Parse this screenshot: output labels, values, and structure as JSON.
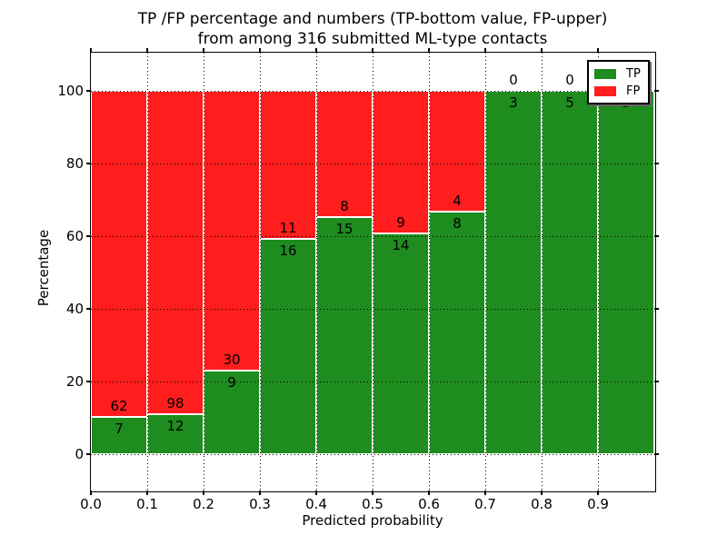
{
  "figure": {
    "title_line1": "TP /FP percentage and numbers (TP-bottom value, FP-upper)",
    "title_line2": "from among 316 submitted ML-type contacts",
    "xlabel": "Predicted probability",
    "ylabel": "Percentage"
  },
  "legend": {
    "position": "upper right",
    "items": [
      {
        "label": "TP",
        "color": "#1e8c1e"
      },
      {
        "label": "FP",
        "color": "#ff1d1d"
      }
    ]
  },
  "chart_data": {
    "type": "bar",
    "stacked": true,
    "normalized": "each bin stacked to 100%",
    "title": "TP /FP percentage and numbers (TP-bottom value, FP-upper) from among 316 submitted ML-type contacts",
    "xlabel": "Predicted probability",
    "ylabel": "Percentage",
    "total_contacts": 316,
    "bin_width": 0.1,
    "bin_starts": [
      0.0,
      0.1,
      0.2,
      0.3,
      0.4,
      0.5,
      0.6,
      0.7,
      0.8,
      0.9
    ],
    "xticks": [
      "0.0",
      "0.1",
      "0.2",
      "0.3",
      "0.4",
      "0.5",
      "0.6",
      "0.7",
      "0.8",
      "0.9"
    ],
    "yticks": [
      0,
      20,
      40,
      60,
      80,
      100
    ],
    "xlim": [
      0.0,
      1.0
    ],
    "ylim": [
      -10,
      110.5
    ],
    "grid": true,
    "legend_position": "upper right",
    "series": [
      {
        "name": "TP",
        "color": "#1e8c1e",
        "counts": [
          7,
          12,
          9,
          16,
          15,
          14,
          8,
          3,
          5,
          5
        ]
      },
      {
        "name": "FP",
        "color": "#ff1d1d",
        "counts": [
          62,
          98,
          30,
          11,
          8,
          9,
          4,
          0,
          0,
          0
        ]
      }
    ],
    "tp_percent_of_bin": [
      10.1,
      10.9,
      23.1,
      59.3,
      65.2,
      60.9,
      66.7,
      100.0,
      100.0,
      100.0
    ]
  }
}
